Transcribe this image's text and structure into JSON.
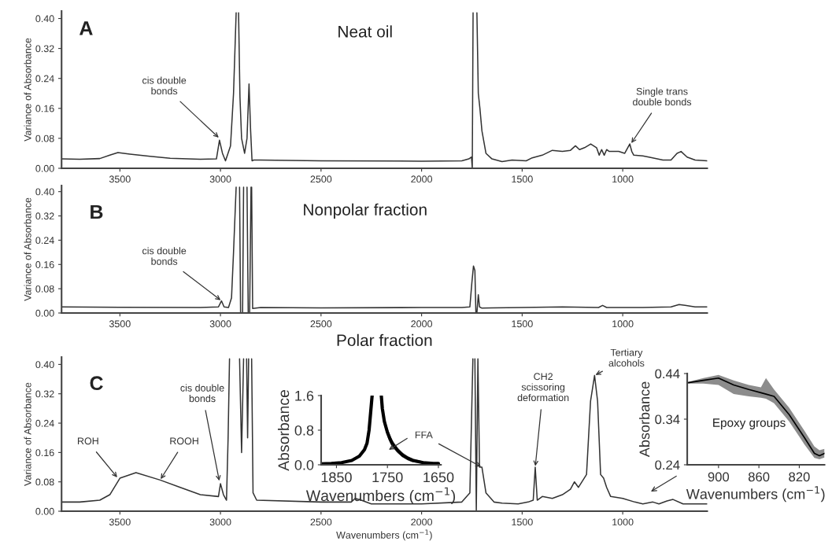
{
  "chart_data": [
    {
      "type": "line",
      "title": "Neat oil",
      "ylabel": "Variance of Absorbance",
      "x": [
        3790,
        3700,
        3600,
        3550,
        3510,
        3450,
        3350,
        3250,
        3100,
        3020,
        3005,
        2990,
        2975,
        2950,
        2935,
        2922,
        2916,
        2910,
        2903,
        2895,
        2880,
        2868,
        2858,
        2850,
        2843,
        2835,
        2800,
        2500,
        2000,
        1800,
        1765,
        1752,
        1748,
        1744,
        1735,
        1725,
        1718,
        1710,
        1700,
        1680,
        1650,
        1600,
        1550,
        1480,
        1450,
        1400,
        1350,
        1300,
        1260,
        1235,
        1215,
        1190,
        1159,
        1130,
        1117,
        1105,
        1092,
        1080,
        1067,
        1050,
        1020,
        990,
        965,
        955,
        945,
        900,
        870,
        800,
        760,
        730,
        710,
        680,
        640,
        580
      ],
      "series": [
        {
          "color": "#333333",
          "values": [
            0.025,
            0.024,
            0.026,
            0.035,
            0.042,
            0.038,
            0.032,
            0.027,
            0.024,
            0.025,
            0.075,
            0.04,
            0.02,
            0.06,
            0.2,
            0.415,
            null,
            0.415,
            0.19,
            0.08,
            0.04,
            0.08,
            0.225,
            0.1,
            0.02,
            0.022,
            0.022,
            0.02,
            0.019,
            0.02,
            0.025,
            0.03,
            0.0,
            0.415,
            null,
            0.415,
            0.2,
            0.16,
            0.1,
            0.04,
            0.025,
            0.018,
            0.022,
            0.02,
            0.028,
            0.035,
            0.048,
            0.045,
            0.048,
            0.06,
            0.05,
            0.055,
            0.065,
            0.055,
            0.035,
            0.05,
            0.035,
            0.05,
            0.045,
            0.045,
            0.045,
            0.04,
            0.065,
            0.045,
            0.035,
            0.033,
            0.03,
            0.022,
            0.022,
            0.04,
            0.045,
            0.03,
            0.022,
            0.02
          ]
        }
      ],
      "xlim": [
        3790,
        580
      ],
      "ylim": [
        0,
        0.42
      ],
      "xticks": [
        3500,
        3000,
        2500,
        2000,
        1500,
        1000
      ],
      "yticks": [
        {
          "value": 0,
          "label": "0.00"
        },
        {
          "value": 0.08,
          "label": "0.08"
        },
        {
          "value": 0.16,
          "label": "0.16"
        },
        {
          "value": 0.24,
          "label": "0.24"
        },
        {
          "value": 0.32,
          "label": "0.32"
        },
        {
          "value": 0.4,
          "label": "0.40"
        }
      ],
      "annotations": [
        "A",
        {
          "text": "cis double\nbonds",
          "x": 3005,
          "y": 0.08
        },
        {
          "text": "Single trans\ndouble bonds",
          "x": 960,
          "y": 0.065
        }
      ]
    },
    {
      "type": "line",
      "title": "Nonpolar fraction",
      "ylabel": "Variance of Absorbance",
      "x": [
        3790,
        3500,
        3100,
        3010,
        2995,
        2982,
        2960,
        2945,
        2935,
        2922,
        2913,
        2905,
        2900,
        2890,
        2885,
        2880,
        2868,
        2862,
        2855,
        2848,
        2846,
        2845,
        2840,
        2800,
        2500,
        2000,
        1800,
        1760,
        1750,
        1742,
        1735,
        1730,
        1725,
        1718,
        1712,
        1700,
        1650,
        1500,
        1300,
        1120,
        1100,
        1080,
        900,
        760,
        720,
        690,
        640,
        580
      ],
      "series": [
        {
          "color": "#333333",
          "values": [
            0.02,
            0.019,
            0.018,
            0.02,
            0.04,
            0.02,
            0.018,
            0.05,
            0.2,
            0.415,
            null,
            0.415,
            0.0,
            0.0,
            0.415,
            null,
            0.415,
            0.0,
            0.0,
            0.415,
            null,
            0.415,
            0.015,
            0.018,
            0.017,
            0.018,
            0.018,
            0.02,
            0.1,
            0.155,
            0.14,
            0.0,
            0.0,
            0.06,
            0.02,
            0.016,
            0.017,
            0.018,
            0.02,
            0.018,
            0.025,
            0.018,
            0.018,
            0.02,
            0.028,
            0.025,
            0.02,
            0.02
          ]
        }
      ],
      "xlim": [
        3790,
        580
      ],
      "ylim": [
        0,
        0.42
      ],
      "xticks": [
        3500,
        3000,
        2500,
        2000,
        1500,
        1000
      ],
      "yticks": [
        {
          "value": 0,
          "label": "0.00"
        },
        {
          "value": 0.08,
          "label": "0.08"
        },
        {
          "value": 0.16,
          "label": "0.16"
        },
        {
          "value": 0.24,
          "label": "0.24"
        },
        {
          "value": 0.32,
          "label": "0.32"
        },
        {
          "value": 0.4,
          "label": "0.40"
        }
      ],
      "annotations": [
        "B",
        {
          "text": "cis double\nbonds",
          "x": 2995,
          "y": 0.04
        }
      ]
    },
    {
      "type": "line",
      "title": "Polar fraction",
      "ylabel": "Variance of Absorbance",
      "xlabel": "Wavenumbers (cm$^{−1}$)",
      "x": [
        3790,
        3700,
        3600,
        3550,
        3500,
        3420,
        3300,
        3200,
        3100,
        3010,
        3000,
        2985,
        2970,
        2962,
        2955,
        2930,
        2905,
        2895,
        2885,
        2878,
        2870,
        2865,
        2860,
        2852,
        2845,
        2838,
        2820,
        2500,
        2350,
        2330,
        2300,
        2250,
        2000,
        1800,
        1760,
        1745,
        1740,
        1735,
        1728,
        1720,
        1712,
        1700,
        1680,
        1640,
        1600,
        1520,
        1470,
        1445,
        1435,
        1425,
        1400,
        1350,
        1300,
        1260,
        1240,
        1220,
        1180,
        1160,
        1140,
        1125,
        1110,
        1095,
        1080,
        1060,
        1000,
        940,
        900,
        850,
        820,
        780,
        750,
        700,
        640,
        580
      ],
      "series": [
        {
          "color": "#333333",
          "values": [
            0.025,
            0.025,
            0.03,
            0.045,
            0.09,
            0.105,
            0.085,
            0.065,
            0.045,
            0.04,
            0.075,
            0.045,
            0.03,
            0.2,
            0.415,
            null,
            0.415,
            0.16,
            0.415,
            null,
            0.415,
            0.2,
            0.415,
            null,
            0.415,
            0.05,
            0.03,
            0.025,
            0.025,
            0.035,
            0.03,
            0.02,
            0.02,
            0.025,
            0.05,
            0.415,
            null,
            0.415,
            0.0,
            0.415,
            0.12,
            0.12,
            0.05,
            0.025,
            0.022,
            0.02,
            0.025,
            0.03,
            0.12,
            0.03,
            0.04,
            0.035,
            0.045,
            0.06,
            0.08,
            0.065,
            0.1,
            0.3,
            0.37,
            0.3,
            0.1,
            0.09,
            0.065,
            0.04,
            0.035,
            0.025,
            0.02,
            0.025,
            0.02,
            0.028,
            0.032,
            0.02,
            0.02,
            0.02
          ]
        }
      ],
      "xlim": [
        3790,
        580
      ],
      "ylim": [
        0,
        0.42
      ],
      "xticks": [
        3500,
        3000,
        2500,
        2000,
        1500,
        1000
      ],
      "yticks": [
        {
          "value": 0,
          "label": "0.00"
        },
        {
          "value": 0.08,
          "label": "0.08"
        },
        {
          "value": 0.16,
          "label": "0.16"
        },
        {
          "value": 0.24,
          "label": "0.24"
        },
        {
          "value": 0.32,
          "label": "0.32"
        },
        {
          "value": 0.4,
          "label": "0.40"
        }
      ],
      "annotations": [
        "C",
        {
          "text": "ROH",
          "x": 3510,
          "y": 0.09
        },
        {
          "text": "ROOH",
          "x": 3300,
          "y": 0.085
        },
        {
          "text": "cis double\nbonds",
          "x": 3005,
          "y": 0.08
        },
        {
          "text": "FFA",
          "x": 1700,
          "y": 0.12
        },
        {
          "text": "CH2\nscissoring\ndeformation",
          "x": 1435,
          "y": 0.12
        },
        {
          "text": "Tertiary\nalcohols",
          "x": 1140,
          "y": 0.37
        }
      ]
    },
    {
      "type": "line",
      "ylabel": "Absorbance",
      "xlabel": "Wavenumbers (cm$^{−1}$)",
      "x": [
        1880,
        1860,
        1840,
        1820,
        1805,
        1795,
        1790,
        1786,
        1783,
        1780,
        1770,
        1762,
        1760,
        1756,
        1750,
        1745,
        1740,
        1730,
        1720,
        1710,
        1700,
        1680,
        1660,
        1650
      ],
      "series": [
        {
          "color": "#000000",
          "values": [
            0.02,
            0.03,
            0.05,
            0.1,
            0.2,
            0.35,
            0.5,
            0.8,
            1.2,
            1.6,
            null,
            1.6,
            1.3,
            1.0,
            0.75,
            0.6,
            0.48,
            0.33,
            0.22,
            0.15,
            0.1,
            0.05,
            0.03,
            0.03
          ],
          "lower": [
            null,
            null,
            null,
            null,
            null,
            null,
            null,
            null,
            null,
            null,
            null,
            null,
            1.2,
            0.9,
            0.65,
            0.5,
            0.4,
            0.27,
            0.17,
            0.1,
            0.06,
            0.03,
            0.02,
            0.02
          ],
          "upper": [
            null,
            null,
            null,
            null,
            null,
            null,
            null,
            null,
            null,
            null,
            null,
            null,
            1.4,
            1.1,
            0.85,
            0.7,
            0.57,
            0.4,
            0.28,
            0.2,
            0.14,
            0.08,
            0.05,
            0.04
          ]
        }
      ],
      "xlim": [
        1880,
        1645
      ],
      "ylim": [
        0,
        1.6
      ],
      "xticks": [
        1850,
        1750,
        1650
      ],
      "yticks": [
        {
          "value": 0,
          "label": "0.0"
        },
        {
          "value": 0.8,
          "label": "0.8"
        },
        {
          "value": 1.6,
          "label": "1.6"
        }
      ]
    },
    {
      "type": "line",
      "ylabel": "Absorbance",
      "xlabel": "Wavenumbers (cm$^{−1}$)",
      "x": [
        930,
        915,
        900,
        885,
        870,
        858,
        853,
        845,
        830,
        815,
        805,
        800,
        795
      ],
      "series": [
        {
          "color": "#000000",
          "values": [
            0.42,
            0.425,
            0.43,
            0.415,
            0.405,
            0.398,
            0.395,
            0.39,
            0.35,
            0.3,
            0.265,
            0.26,
            0.265
          ],
          "lower": [
            0.418,
            0.418,
            0.415,
            0.395,
            0.39,
            0.387,
            0.385,
            0.375,
            0.335,
            0.285,
            0.255,
            0.252,
            0.256
          ],
          "upper": [
            0.422,
            0.43,
            0.437,
            0.425,
            0.415,
            0.41,
            0.43,
            0.405,
            0.365,
            0.315,
            0.28,
            0.272,
            0.275
          ]
        }
      ],
      "xlim": [
        931,
        795
      ],
      "ylim": [
        0.24,
        0.44
      ],
      "xticks": [
        900,
        860,
        820
      ],
      "yticks": [
        0.24,
        0.34,
        0.44
      ],
      "annotations": [
        "Epoxy groups"
      ]
    }
  ]
}
